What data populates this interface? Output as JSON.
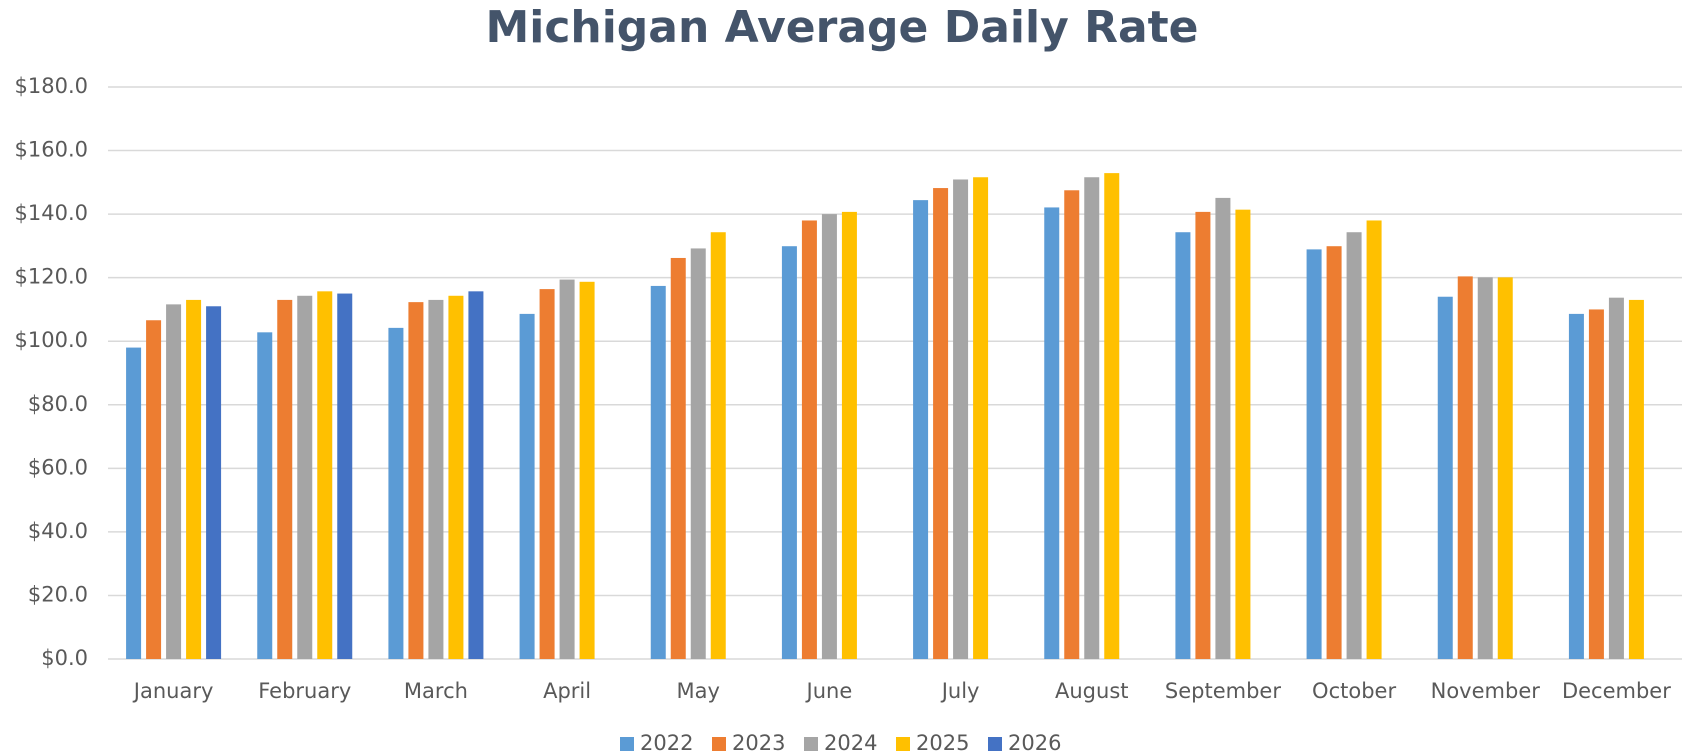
{
  "chart_data": {
    "type": "bar",
    "title": "Michigan Average Daily Rate",
    "categories": [
      "January",
      "February",
      "March",
      "April",
      "May",
      "June",
      "July",
      "August",
      "September",
      "October",
      "November",
      "December"
    ],
    "series": [
      {
        "name": "2022",
        "color": "#5b9bd5",
        "values": [
          98,
          102.8,
          104.2,
          108.6,
          117.4,
          129.9,
          144.4,
          142.1,
          134.3,
          128.9,
          114,
          108.6
        ]
      },
      {
        "name": "2023",
        "color": "#ed7d31",
        "values": [
          106.6,
          113,
          112.3,
          116.4,
          126.2,
          138,
          148.2,
          147.5,
          140.7,
          129.9,
          120.4,
          110
        ]
      },
      {
        "name": "2024",
        "color": "#a5a5a5",
        "values": [
          111.6,
          114.3,
          113,
          119.4,
          129.2,
          140,
          150.9,
          151.6,
          145.1,
          134.3,
          120.1,
          113.7
        ]
      },
      {
        "name": "2025",
        "color": "#ffc000",
        "values": [
          113,
          115.7,
          114.3,
          118.7,
          134.3,
          140.7,
          151.6,
          152.9,
          141.4,
          138,
          120.1,
          113
        ]
      },
      {
        "name": "2026",
        "color": "#4472c4",
        "values": [
          111,
          115,
          115.7,
          null,
          null,
          null,
          null,
          null,
          null,
          null,
          null,
          null
        ]
      }
    ],
    "ylim": [
      0,
      180
    ],
    "yticks": [
      {
        "value": 0,
        "label": "$0.0"
      },
      {
        "value": 20,
        "label": "$20.0"
      },
      {
        "value": 40,
        "label": "$40.0"
      },
      {
        "value": 60,
        "label": "$60.0"
      },
      {
        "value": 80,
        "label": "$80.0"
      },
      {
        "value": 100,
        "label": "$100.0"
      },
      {
        "value": 120,
        "label": "$120.0"
      },
      {
        "value": 140,
        "label": "$140.0"
      },
      {
        "value": 160,
        "label": "$160.0"
      },
      {
        "value": 180,
        "label": "$180.0"
      }
    ],
    "grid": true,
    "legend": "bottom"
  }
}
